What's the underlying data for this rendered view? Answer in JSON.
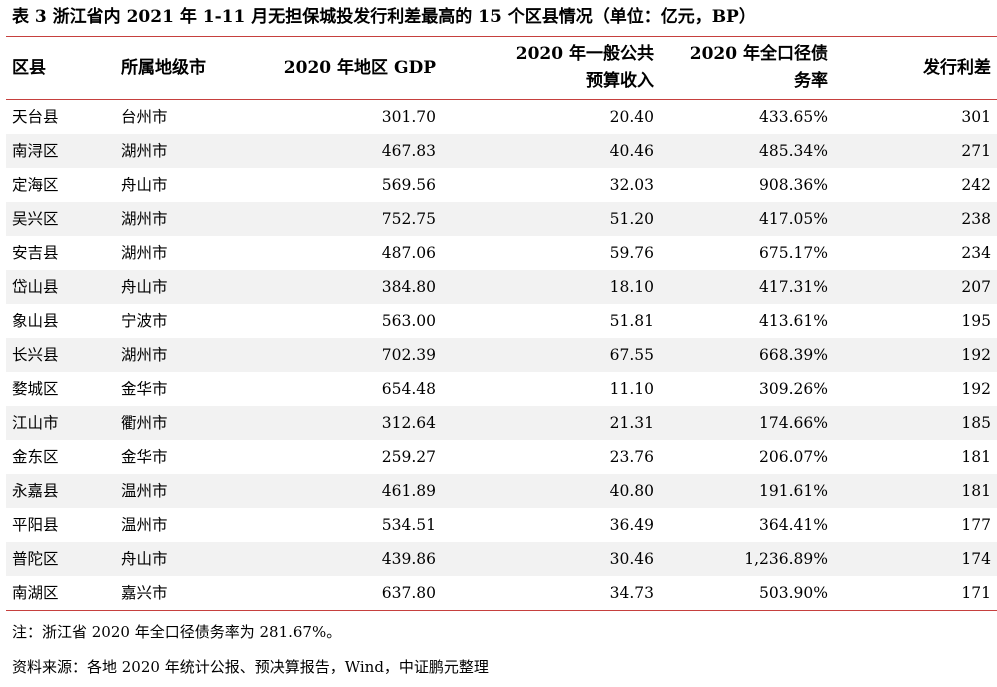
{
  "title": "表 3 浙江省内 2021 年 1-11 月无担保城投发行利差最高的 15 个区县情况（单位：亿元，BP）",
  "headers": {
    "county": "区县",
    "city": "所属地级市",
    "gdp": "2020 年地区 GDP",
    "budget_line1": "2020 年一般公共",
    "budget_line2": "预算收入",
    "debt_line1": "2020 年全口径债",
    "debt_line2": "务率",
    "spread": "发行利差"
  },
  "rows": [
    {
      "county": "天台县",
      "city": "台州市",
      "gdp": "301.70",
      "budget": "20.40",
      "debt": "433.65%",
      "spread": "301"
    },
    {
      "county": "南浔区",
      "city": "湖州市",
      "gdp": "467.83",
      "budget": "40.46",
      "debt": "485.34%",
      "spread": "271"
    },
    {
      "county": "定海区",
      "city": "舟山市",
      "gdp": "569.56",
      "budget": "32.03",
      "debt": "908.36%",
      "spread": "242"
    },
    {
      "county": "吴兴区",
      "city": "湖州市",
      "gdp": "752.75",
      "budget": "51.20",
      "debt": "417.05%",
      "spread": "238"
    },
    {
      "county": "安吉县",
      "city": "湖州市",
      "gdp": "487.06",
      "budget": "59.76",
      "debt": "675.17%",
      "spread": "234"
    },
    {
      "county": "岱山县",
      "city": "舟山市",
      "gdp": "384.80",
      "budget": "18.10",
      "debt": "417.31%",
      "spread": "207"
    },
    {
      "county": "象山县",
      "city": "宁波市",
      "gdp": "563.00",
      "budget": "51.81",
      "debt": "413.61%",
      "spread": "195"
    },
    {
      "county": "长兴县",
      "city": "湖州市",
      "gdp": "702.39",
      "budget": "67.55",
      "debt": "668.39%",
      "spread": "192"
    },
    {
      "county": "婺城区",
      "city": "金华市",
      "gdp": "654.48",
      "budget": "11.10",
      "debt": "309.26%",
      "spread": "192"
    },
    {
      "county": "江山市",
      "city": "衢州市",
      "gdp": "312.64",
      "budget": "21.31",
      "debt": "174.66%",
      "spread": "185"
    },
    {
      "county": "金东区",
      "city": "金华市",
      "gdp": "259.27",
      "budget": "23.76",
      "debt": "206.07%",
      "spread": "181"
    },
    {
      "county": "永嘉县",
      "city": "温州市",
      "gdp": "461.89",
      "budget": "40.80",
      "debt": "191.61%",
      "spread": "181"
    },
    {
      "county": "平阳县",
      "city": "温州市",
      "gdp": "534.51",
      "budget": "36.49",
      "debt": "364.41%",
      "spread": "177"
    },
    {
      "county": "普陀区",
      "city": "舟山市",
      "gdp": "439.86",
      "budget": "30.46",
      "debt": "1,236.89%",
      "spread": "174"
    },
    {
      "county": "南湖区",
      "city": "嘉兴市",
      "gdp": "637.80",
      "budget": "34.73",
      "debt": "503.90%",
      "spread": "171"
    }
  ],
  "notes": {
    "note": "注：浙江省 2020 年全口径债务率为 281.67%。",
    "source": "资料来源：各地 2020 年统计公报、预决算报告，Wind，中证鹏元整理"
  },
  "colors": {
    "rule": "#c6403e",
    "stripe": "#f2f2f2"
  }
}
